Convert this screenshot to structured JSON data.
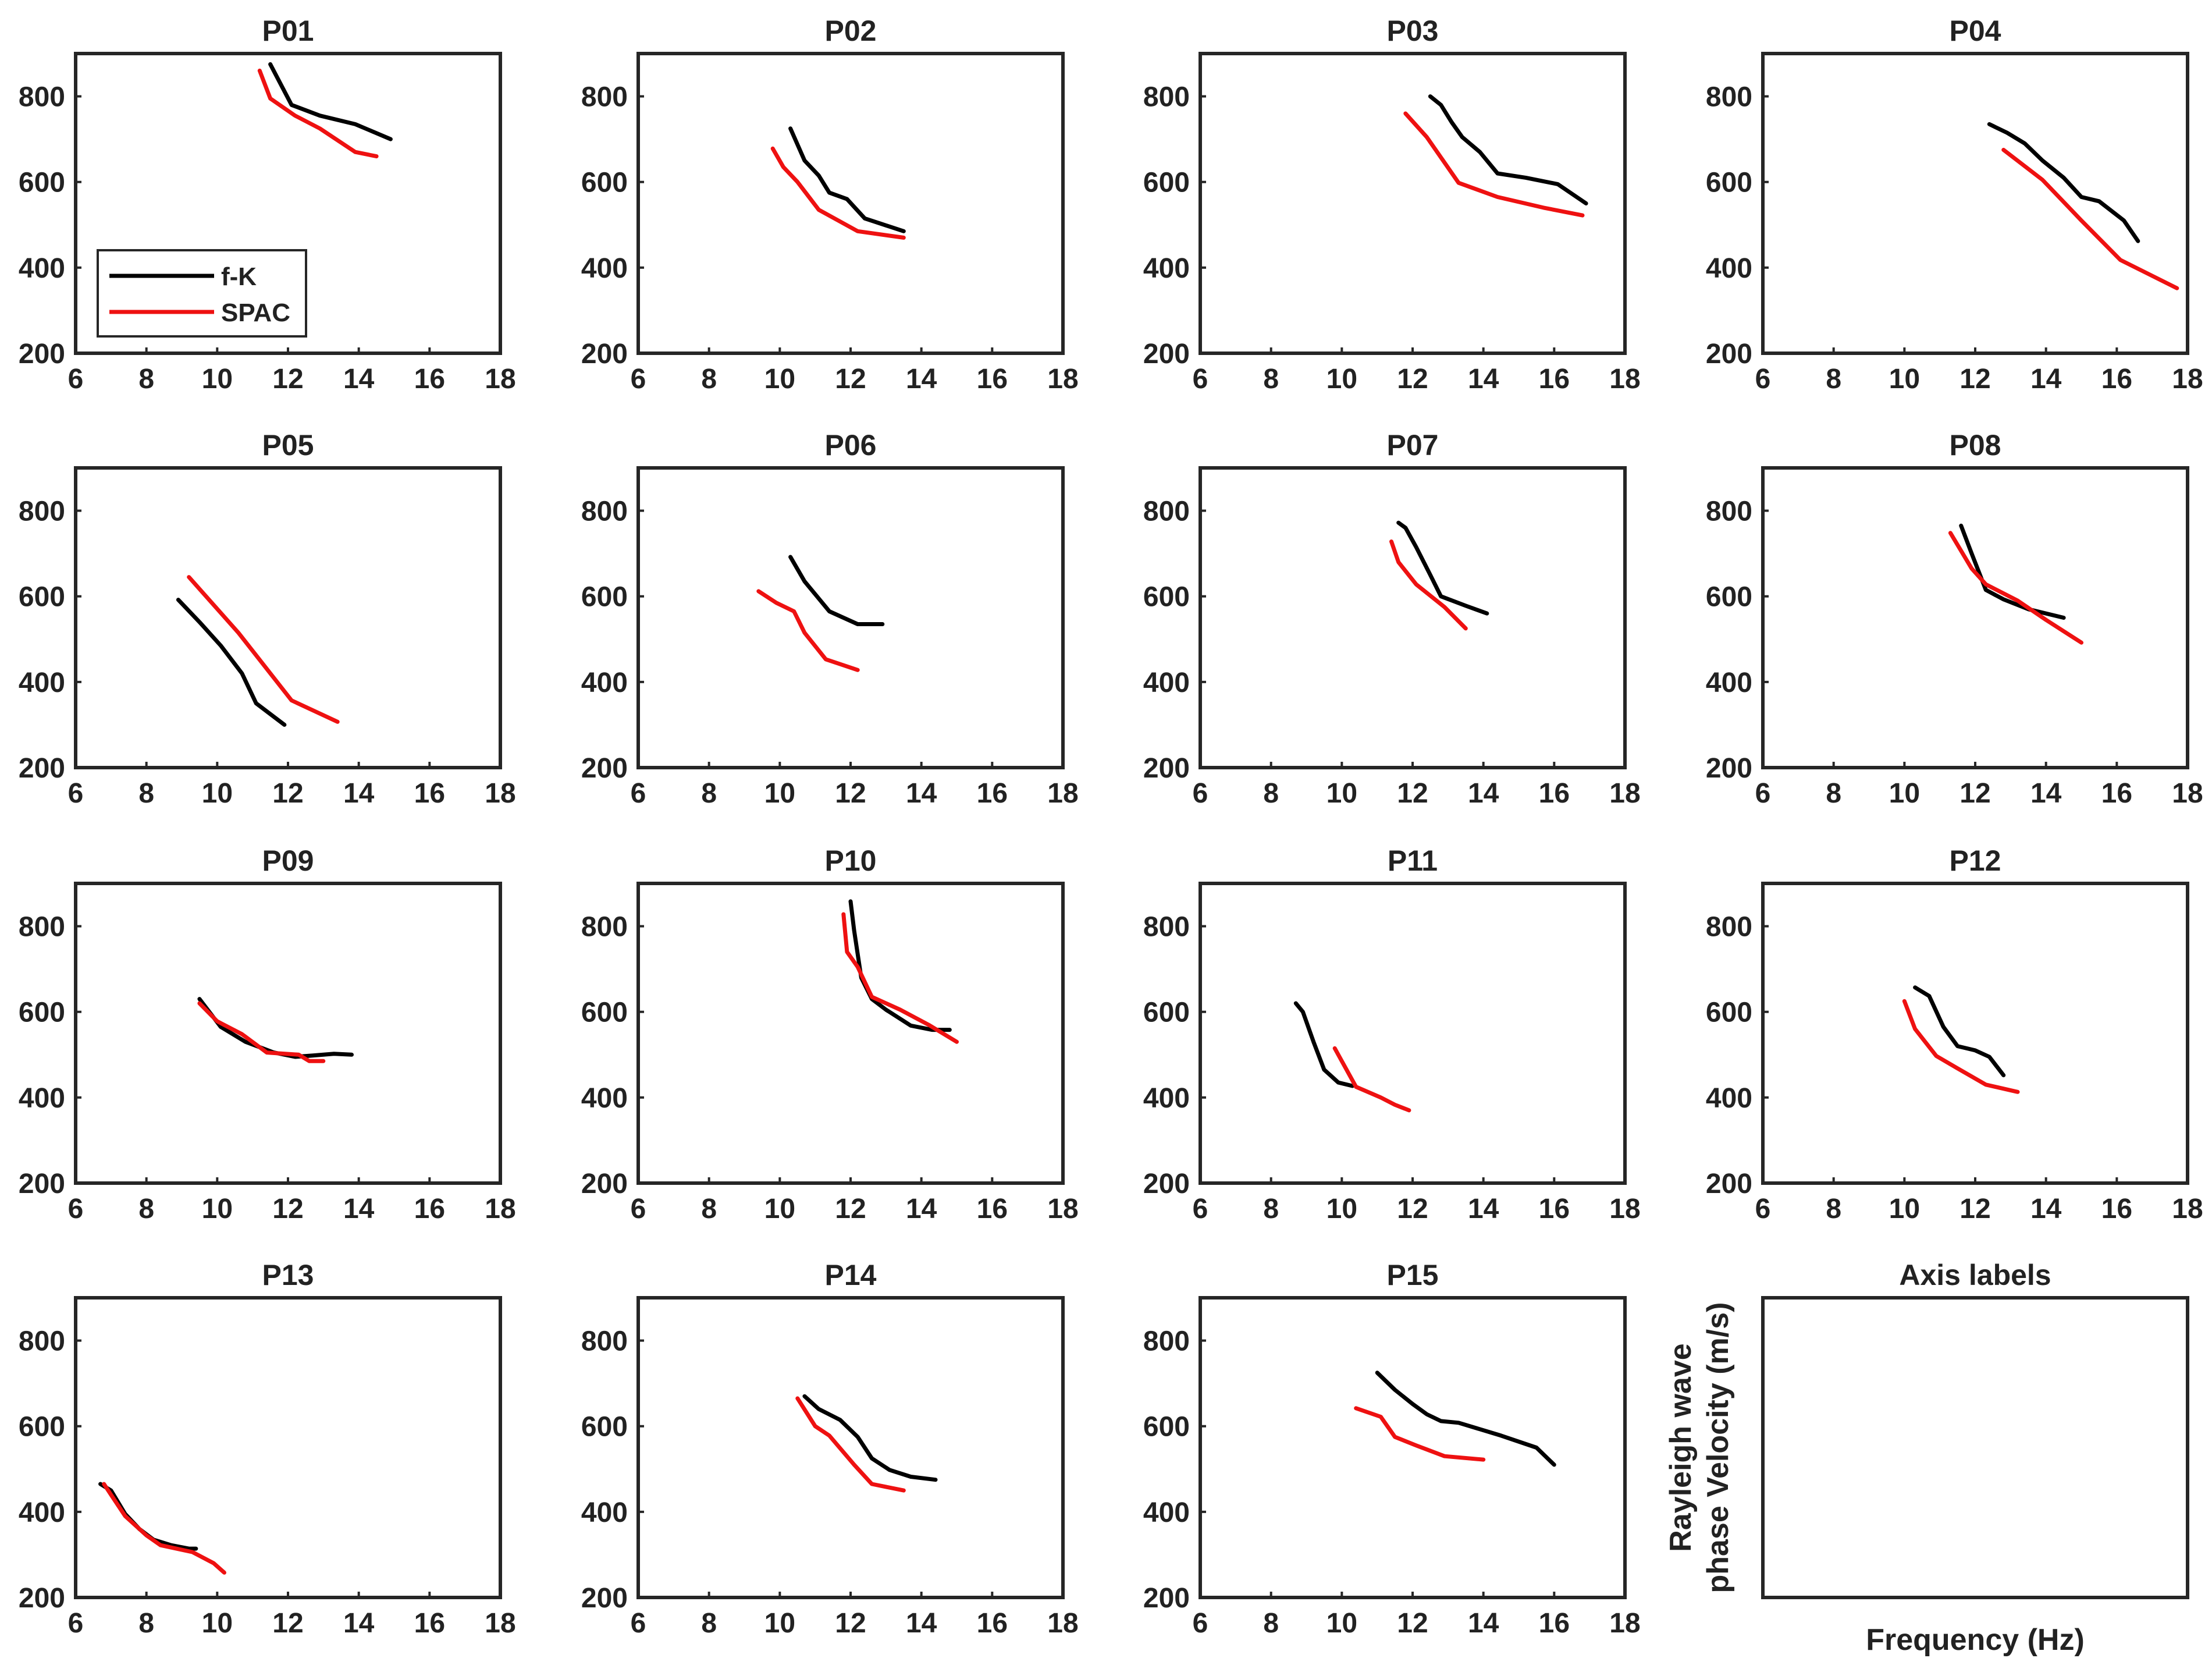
{
  "chart_data": [
    {
      "type": "line",
      "title": "P01",
      "xlim": [
        6,
        18
      ],
      "ylim": [
        200,
        900
      ],
      "xticks": [
        6,
        8,
        10,
        12,
        14,
        16,
        18
      ],
      "yticks": [
        200,
        400,
        600,
        800
      ],
      "legend": {
        "placement": "bottom-left",
        "entries": [
          "f-K",
          "SPAC"
        ]
      },
      "series": [
        {
          "name": "f-K",
          "color": "#000000",
          "x": [
            11.5,
            12.1,
            12.9,
            13.9,
            14.9
          ],
          "y": [
            875,
            780,
            755,
            735,
            700
          ]
        },
        {
          "name": "SPAC",
          "color": "#ee1111",
          "x": [
            11.2,
            11.5,
            12.2,
            12.9,
            13.9,
            14.5
          ],
          "y": [
            860,
            795,
            755,
            725,
            670,
            660
          ]
        }
      ]
    },
    {
      "type": "line",
      "title": "P02",
      "xlim": [
        6,
        18
      ],
      "ylim": [
        200,
        900
      ],
      "xticks": [
        6,
        8,
        10,
        12,
        14,
        16,
        18
      ],
      "yticks": [
        200,
        400,
        600,
        800
      ],
      "series": [
        {
          "name": "f-K",
          "color": "#000000",
          "x": [
            10.3,
            10.7,
            11.1,
            11.4,
            11.9,
            12.4,
            13.5
          ],
          "y": [
            725,
            650,
            615,
            575,
            560,
            515,
            485
          ]
        },
        {
          "name": "SPAC",
          "color": "#ee1111",
          "x": [
            9.8,
            10.1,
            10.5,
            11.1,
            12.2,
            13.5
          ],
          "y": [
            678,
            635,
            600,
            535,
            485,
            470
          ]
        }
      ]
    },
    {
      "type": "line",
      "title": "P03",
      "xlim": [
        6,
        18
      ],
      "ylim": [
        200,
        900
      ],
      "xticks": [
        6,
        8,
        10,
        12,
        14,
        16,
        18
      ],
      "yticks": [
        200,
        400,
        600,
        800
      ],
      "series": [
        {
          "name": "f-K",
          "color": "#000000",
          "x": [
            12.5,
            12.8,
            13.1,
            13.4,
            13.9,
            14.4,
            15.2,
            16.1,
            16.9
          ],
          "y": [
            800,
            780,
            740,
            705,
            670,
            620,
            610,
            595,
            550
          ]
        },
        {
          "name": "SPAC",
          "color": "#ee1111",
          "x": [
            11.8,
            12.4,
            13.3,
            14.4,
            15.7,
            16.8
          ],
          "y": [
            760,
            705,
            598,
            565,
            540,
            522
          ]
        }
      ]
    },
    {
      "type": "line",
      "title": "P04",
      "xlim": [
        6,
        18
      ],
      "ylim": [
        200,
        900
      ],
      "xticks": [
        6,
        8,
        10,
        12,
        14,
        16,
        18
      ],
      "yticks": [
        200,
        400,
        600,
        800
      ],
      "series": [
        {
          "name": "f-K",
          "color": "#000000",
          "x": [
            12.4,
            12.9,
            13.4,
            13.9,
            14.5,
            15.0,
            15.5,
            16.2,
            16.6
          ],
          "y": [
            735,
            715,
            690,
            650,
            610,
            565,
            555,
            510,
            462
          ]
        },
        {
          "name": "SPAC",
          "color": "#ee1111",
          "x": [
            12.8,
            13.9,
            15.0,
            16.1,
            17.7
          ],
          "y": [
            675,
            605,
            510,
            418,
            352
          ]
        }
      ]
    },
    {
      "type": "line",
      "title": "P05",
      "xlim": [
        6,
        18
      ],
      "ylim": [
        200,
        900
      ],
      "xticks": [
        6,
        8,
        10,
        12,
        14,
        16,
        18
      ],
      "yticks": [
        200,
        400,
        600,
        800
      ],
      "series": [
        {
          "name": "f-K",
          "color": "#000000",
          "x": [
            8.9,
            9.5,
            10.1,
            10.7,
            11.1,
            11.9
          ],
          "y": [
            592,
            540,
            485,
            420,
            350,
            300
          ]
        },
        {
          "name": "SPAC",
          "color": "#ee1111",
          "x": [
            9.2,
            10.6,
            12.1,
            13.4
          ],
          "y": [
            645,
            515,
            357,
            307
          ]
        }
      ]
    },
    {
      "type": "line",
      "title": "P06",
      "xlim": [
        6,
        18
      ],
      "ylim": [
        200,
        900
      ],
      "xticks": [
        6,
        8,
        10,
        12,
        14,
        16,
        18
      ],
      "yticks": [
        200,
        400,
        600,
        800
      ],
      "series": [
        {
          "name": "f-K",
          "color": "#000000",
          "x": [
            10.3,
            10.7,
            11.4,
            12.2,
            12.4,
            12.9
          ],
          "y": [
            692,
            635,
            565,
            535,
            535,
            535
          ]
        },
        {
          "name": "SPAC",
          "color": "#ee1111",
          "x": [
            9.4,
            9.9,
            10.4,
            10.7,
            11.3,
            12.2
          ],
          "y": [
            612,
            585,
            565,
            515,
            453,
            428
          ]
        }
      ]
    },
    {
      "type": "line",
      "title": "P07",
      "xlim": [
        6,
        18
      ],
      "ylim": [
        200,
        900
      ],
      "xticks": [
        6,
        8,
        10,
        12,
        14,
        16,
        18
      ],
      "yticks": [
        200,
        400,
        600,
        800
      ],
      "series": [
        {
          "name": "f-K",
          "color": "#000000",
          "x": [
            11.6,
            11.8,
            12.1,
            12.5,
            12.8,
            13.5,
            14.1
          ],
          "y": [
            772,
            760,
            715,
            650,
            600,
            578,
            560
          ]
        },
        {
          "name": "SPAC",
          "color": "#ee1111",
          "x": [
            11.4,
            11.6,
            12.1,
            12.9,
            13.5
          ],
          "y": [
            728,
            680,
            628,
            575,
            525
          ]
        }
      ]
    },
    {
      "type": "line",
      "title": "P08",
      "xlim": [
        6,
        18
      ],
      "ylim": [
        200,
        900
      ],
      "xticks": [
        6,
        8,
        10,
        12,
        14,
        16,
        18
      ],
      "yticks": [
        200,
        400,
        600,
        800
      ],
      "series": [
        {
          "name": "f-K",
          "color": "#000000",
          "x": [
            11.6,
            11.9,
            12.3,
            12.8,
            13.5,
            14.5
          ],
          "y": [
            765,
            700,
            615,
            593,
            570,
            550
          ]
        },
        {
          "name": "SPAC",
          "color": "#ee1111",
          "x": [
            11.3,
            11.9,
            12.3,
            13.2,
            14.0,
            15.0
          ],
          "y": [
            748,
            665,
            628,
            590,
            545,
            492
          ]
        }
      ]
    },
    {
      "type": "line",
      "title": "P09",
      "xlim": [
        6,
        18
      ],
      "ylim": [
        200,
        900
      ],
      "xticks": [
        6,
        8,
        10,
        12,
        14,
        16,
        18
      ],
      "yticks": [
        200,
        400,
        600,
        800
      ],
      "series": [
        {
          "name": "f-K",
          "color": "#000000",
          "x": [
            9.5,
            10.1,
            10.8,
            11.6,
            12.2,
            12.7,
            13.3,
            13.8
          ],
          "y": [
            630,
            565,
            530,
            505,
            495,
            498,
            502,
            500
          ]
        },
        {
          "name": "SPAC",
          "color": "#ee1111",
          "x": [
            9.5,
            10.0,
            10.7,
            11.4,
            12.3,
            12.6,
            13.0
          ],
          "y": [
            620,
            578,
            548,
            505,
            500,
            485,
            485
          ]
        }
      ]
    },
    {
      "type": "line",
      "title": "P10",
      "xlim": [
        6,
        18
      ],
      "ylim": [
        200,
        900
      ],
      "xticks": [
        6,
        8,
        10,
        12,
        14,
        16,
        18
      ],
      "yticks": [
        200,
        400,
        600,
        800
      ],
      "series": [
        {
          "name": "f-K",
          "color": "#000000",
          "x": [
            12.0,
            12.1,
            12.3,
            12.6,
            13.0,
            13.7,
            14.3,
            14.8
          ],
          "y": [
            858,
            790,
            680,
            630,
            605,
            568,
            558,
            558
          ]
        },
        {
          "name": "SPAC",
          "color": "#ee1111",
          "x": [
            11.8,
            11.9,
            12.2,
            12.6,
            13.4,
            14.2,
            15.0
          ],
          "y": [
            828,
            740,
            705,
            635,
            605,
            570,
            530
          ]
        }
      ]
    },
    {
      "type": "line",
      "title": "P11",
      "xlim": [
        6,
        18
      ],
      "ylim": [
        200,
        900
      ],
      "xticks": [
        6,
        8,
        10,
        12,
        14,
        16,
        18
      ],
      "yticks": [
        200,
        400,
        600,
        800
      ],
      "series": [
        {
          "name": "f-K",
          "color": "#000000",
          "x": [
            8.7,
            8.9,
            9.2,
            9.5,
            9.9,
            10.3
          ],
          "y": [
            620,
            600,
            530,
            465,
            435,
            427
          ]
        },
        {
          "name": "SPAC",
          "color": "#ee1111",
          "x": [
            9.8,
            10.0,
            10.4,
            11.1,
            11.5,
            11.9
          ],
          "y": [
            515,
            485,
            425,
            400,
            383,
            370
          ]
        }
      ]
    },
    {
      "type": "line",
      "title": "P12",
      "xlim": [
        6,
        18
      ],
      "ylim": [
        200,
        900
      ],
      "xticks": [
        6,
        8,
        10,
        12,
        14,
        16,
        18
      ],
      "yticks": [
        200,
        400,
        600,
        800
      ],
      "series": [
        {
          "name": "f-K",
          "color": "#000000",
          "x": [
            10.3,
            10.7,
            11.1,
            11.5,
            12.0,
            12.4,
            12.8
          ],
          "y": [
            657,
            637,
            565,
            520,
            510,
            495,
            452
          ]
        },
        {
          "name": "SPAC",
          "color": "#ee1111",
          "x": [
            10.0,
            10.3,
            10.9,
            11.5,
            12.3,
            13.2
          ],
          "y": [
            625,
            560,
            497,
            468,
            430,
            413
          ]
        }
      ]
    },
    {
      "type": "line",
      "title": "P13",
      "xlim": [
        6,
        18
      ],
      "ylim": [
        200,
        900
      ],
      "xticks": [
        6,
        8,
        10,
        12,
        14,
        16,
        18
      ],
      "yticks": [
        200,
        400,
        600,
        800
      ],
      "series": [
        {
          "name": "f-K",
          "color": "#000000",
          "x": [
            6.7,
            7.0,
            7.4,
            7.8,
            8.2,
            8.7,
            9.2,
            9.4
          ],
          "y": [
            465,
            450,
            395,
            360,
            335,
            322,
            314,
            314
          ]
        },
        {
          "name": "SPAC",
          "color": "#ee1111",
          "x": [
            6.8,
            7.0,
            7.4,
            8.0,
            8.4,
            9.3,
            9.9,
            10.2
          ],
          "y": [
            465,
            440,
            390,
            345,
            322,
            306,
            280,
            258
          ]
        }
      ]
    },
    {
      "type": "line",
      "title": "P14",
      "xlim": [
        6,
        18
      ],
      "ylim": [
        200,
        900
      ],
      "xticks": [
        6,
        8,
        10,
        12,
        14,
        16,
        18
      ],
      "yticks": [
        200,
        400,
        600,
        800
      ],
      "series": [
        {
          "name": "f-K",
          "color": "#000000",
          "x": [
            10.7,
            11.1,
            11.7,
            12.2,
            12.6,
            13.1,
            13.7,
            14.4
          ],
          "y": [
            670,
            640,
            615,
            575,
            525,
            498,
            482,
            475
          ]
        },
        {
          "name": "SPAC",
          "color": "#ee1111",
          "x": [
            10.5,
            11.0,
            11.4,
            12.1,
            12.6,
            13.5
          ],
          "y": [
            665,
            600,
            578,
            510,
            465,
            450
          ]
        }
      ]
    },
    {
      "type": "line",
      "title": "P15",
      "xlim": [
        6,
        18
      ],
      "ylim": [
        200,
        900
      ],
      "xticks": [
        6,
        8,
        10,
        12,
        14,
        16,
        18
      ],
      "yticks": [
        200,
        400,
        600,
        800
      ],
      "series": [
        {
          "name": "f-K",
          "color": "#000000",
          "x": [
            11.0,
            11.5,
            12.0,
            12.4,
            12.8,
            13.3,
            14.5,
            15.5,
            16.0
          ],
          "y": [
            725,
            685,
            652,
            628,
            612,
            608,
            578,
            550,
            510
          ]
        },
        {
          "name": "SPAC",
          "color": "#ee1111",
          "x": [
            10.4,
            11.1,
            11.5,
            12.1,
            12.9,
            14.0
          ],
          "y": [
            642,
            622,
            575,
            555,
            530,
            522
          ]
        }
      ]
    },
    {
      "type": "line",
      "title": "Axis labels",
      "xlabel": "Frequency (Hz)",
      "ylabel_line1": "Rayleigh wave",
      "ylabel_line2": "phase Velocity  (m/s)",
      "series": []
    }
  ]
}
